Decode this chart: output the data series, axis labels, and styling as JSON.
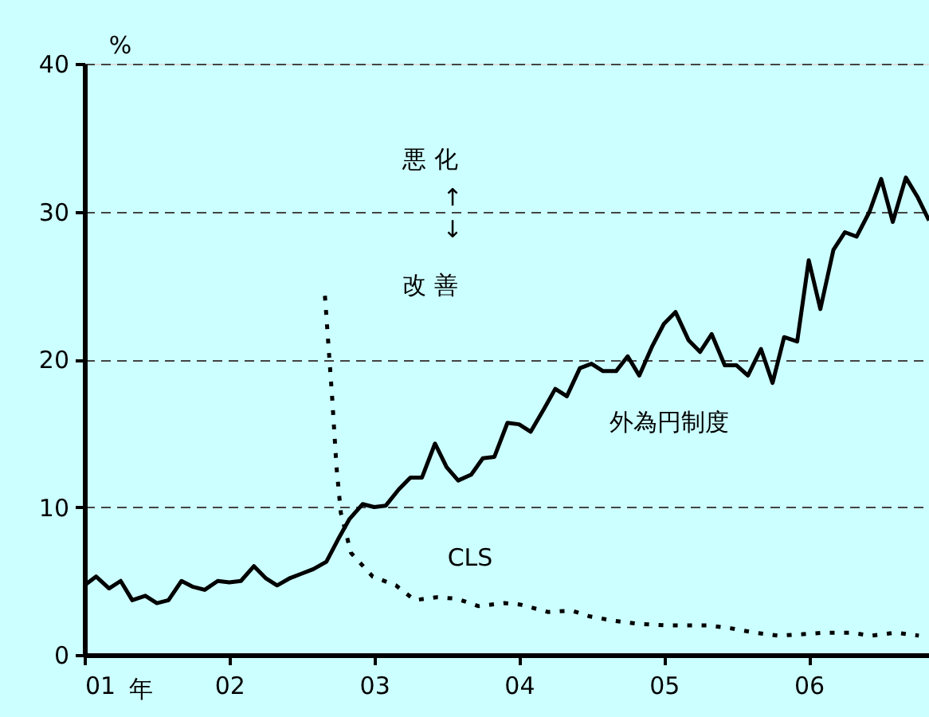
{
  "chart_data": {
    "type": "line",
    "xlabel": "年",
    "ylabel": "%",
    "xlim": [
      2001,
      2006.83
    ],
    "ylim": [
      0,
      40
    ],
    "xticks": [
      {
        "value": 2001,
        "label": "01"
      },
      {
        "value": 2002,
        "label": "02"
      },
      {
        "value": 2003,
        "label": "03"
      },
      {
        "value": 2004,
        "label": "04"
      },
      {
        "value": 2005,
        "label": "05"
      },
      {
        "value": 2006,
        "label": "06"
      }
    ],
    "yticks": [
      0,
      10,
      20,
      30,
      40
    ],
    "grid": "y",
    "series": [
      {
        "name": "外為円制度",
        "color": "#000000",
        "line_style": "solid",
        "x": [
          2001.0,
          2001.08,
          2001.17,
          2001.25,
          2001.33,
          2001.42,
          2001.5,
          2001.58,
          2001.67,
          2001.75,
          2001.83,
          2001.92,
          2002.0,
          2002.08,
          2002.17,
          2002.25,
          2002.33,
          2002.42,
          2002.5,
          2002.58,
          2002.67,
          2002.75,
          2002.83,
          2002.92,
          2003.0,
          2003.08,
          2003.17,
          2003.25,
          2003.33,
          2003.42,
          2003.5,
          2003.58,
          2003.67,
          2003.75,
          2003.83,
          2003.92,
          2004.0,
          2004.08,
          2004.17,
          2004.25,
          2004.33,
          2004.42,
          2004.5,
          2004.58,
          2004.67,
          2004.75,
          2004.83,
          2004.92,
          2005.0,
          2005.08,
          2005.17,
          2005.25,
          2005.33,
          2005.42,
          2005.5,
          2005.58,
          2005.67,
          2005.75,
          2005.83,
          2005.92,
          2006.0,
          2006.08,
          2006.17,
          2006.25,
          2006.33,
          2006.42,
          2006.5,
          2006.58,
          2006.67,
          2006.75,
          2006.83
        ],
        "values": [
          4.7,
          5.3,
          4.5,
          5.0,
          3.7,
          4.0,
          3.5,
          3.7,
          5.0,
          4.6,
          4.4,
          5.0,
          4.9,
          5.0,
          6.0,
          5.2,
          4.7,
          5.2,
          5.5,
          5.8,
          6.3,
          7.8,
          9.2,
          10.2,
          10.0,
          10.1,
          11.2,
          12.0,
          12.0,
          14.3,
          12.7,
          11.8,
          12.2,
          13.3,
          13.4,
          15.7,
          15.6,
          15.1,
          16.6,
          18.0,
          17.5,
          19.4,
          19.7,
          19.2,
          19.2,
          20.2,
          18.9,
          20.9,
          22.4,
          23.2,
          21.3,
          20.5,
          21.7,
          19.6,
          19.6,
          18.9,
          20.7,
          18.4,
          21.5,
          21.2,
          26.7,
          23.4,
          27.4,
          28.6,
          28.3,
          30.0,
          32.2,
          29.3,
          32.3,
          31.0,
          29.4
        ]
      },
      {
        "name": "CLS",
        "color": "#000000",
        "line_style": "dotted",
        "x": [
          2002.66,
          2002.71,
          2002.74,
          2002.77,
          2002.84,
          2002.99,
          2003.15,
          2003.28,
          2003.43,
          2003.57,
          2003.72,
          2003.9,
          2004.01,
          2004.2,
          2004.36,
          2004.49,
          2004.66,
          2004.82,
          2005.0,
          2005.3,
          2005.46,
          2005.63,
          2005.79,
          2005.96,
          2006.1,
          2006.29,
          2006.43,
          2006.6,
          2006.76
        ],
        "values": [
          24.3,
          17.4,
          12.7,
          9.6,
          6.9,
          5.3,
          4.7,
          3.7,
          3.9,
          3.8,
          3.3,
          3.5,
          3.4,
          2.9,
          3.0,
          2.6,
          2.3,
          2.1,
          2.0,
          2.0,
          1.8,
          1.5,
          1.3,
          1.4,
          1.5,
          1.5,
          1.3,
          1.5,
          1.3
        ]
      }
    ],
    "annotations": [
      "悪 化",
      "↑",
      "↓",
      "改 善"
    ]
  }
}
